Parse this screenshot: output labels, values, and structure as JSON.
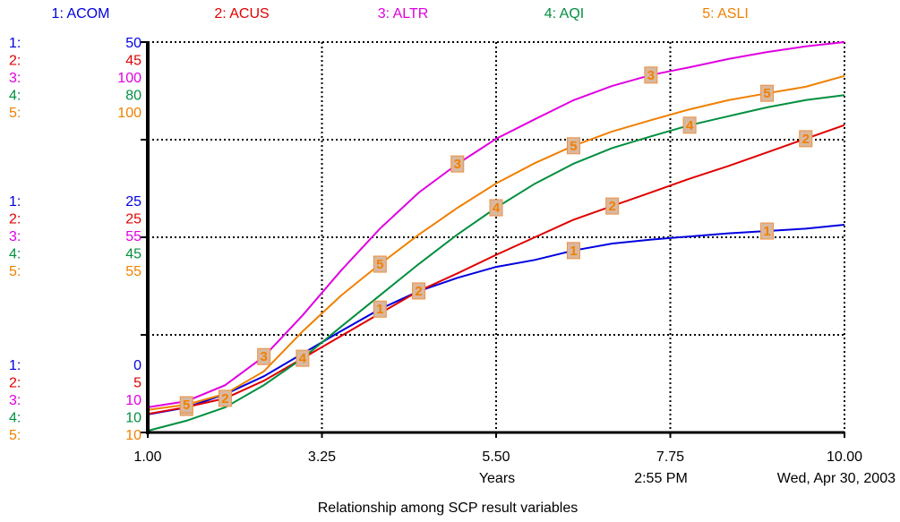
{
  "chart_data": {
    "type": "line",
    "title": "Relationship among SCP result variables",
    "x_label": "Years",
    "time": "2:55 PM",
    "date": "Wed, Apr 30, 2003",
    "xlim": [
      1,
      10
    ],
    "xticks": [
      {
        "value": 1,
        "label": "1.00"
      },
      {
        "value": 3.25,
        "label": "3.25"
      },
      {
        "value": 5.5,
        "label": "5.50"
      },
      {
        "value": 7.75,
        "label": "7.75"
      },
      {
        "value": 10,
        "label": "10.00"
      }
    ],
    "x": [
      1,
      1.5,
      2,
      2.5,
      3,
      3.5,
      4,
      4.5,
      5,
      5.5,
      6,
      6.5,
      7,
      7.5,
      8,
      8.5,
      9,
      9.5,
      10
    ],
    "series": [
      {
        "name": "1: ACOM",
        "key": "1:",
        "marker_label": "1",
        "color": "#0000e0",
        "ylim": [
          0,
          50
        ],
        "yticks": [
          0,
          25,
          50
        ],
        "values": [
          2.3,
          3.2,
          4.9,
          7.2,
          10.1,
          13,
          15.8,
          18.1,
          19.8,
          21.2,
          22.1,
          23.3,
          24.2,
          24.7,
          25.1,
          25.5,
          25.8,
          26.1,
          26.6
        ]
      },
      {
        "name": "2: ACUS",
        "key": "2:",
        "marker_label": "2",
        "color": "#e00000",
        "ylim": [
          5,
          45
        ],
        "yticks": [
          5,
          25,
          45
        ],
        "values": [
          6.9,
          7.6,
          8.5,
          10.3,
          12.6,
          14.9,
          17.2,
          19.5,
          21.3,
          23.2,
          25,
          26.8,
          28.2,
          29.6,
          31,
          32.3,
          33.7,
          35.1,
          36.5
        ]
      },
      {
        "name": "3: ALTR",
        "key": "3:",
        "marker_label": "3",
        "color": "#e000e0",
        "ylim": [
          10,
          100
        ],
        "yticks": [
          10,
          55,
          100
        ],
        "values": [
          15.8,
          17.2,
          20.9,
          27.5,
          37,
          47.4,
          57,
          65.3,
          71.9,
          77.7,
          82.2,
          86.6,
          89.9,
          92.4,
          94.2,
          96.1,
          97.7,
          99,
          100
        ]
      },
      {
        "name": "4: AQI",
        "key": "4:",
        "marker_label": "4",
        "color": "#008f3f",
        "ylim": [
          10,
          80
        ],
        "yticks": [
          10,
          45,
          80
        ],
        "values": [
          10.3,
          12.1,
          14.5,
          18.5,
          23.3,
          29,
          34.6,
          40.2,
          45.5,
          50.3,
          54.6,
          58.2,
          61,
          63.1,
          65.1,
          66.7,
          68.3,
          69.6,
          70.5
        ]
      },
      {
        "name": "5: ASLI",
        "key": "5:",
        "marker_label": "5",
        "color": "#f08000",
        "ylim": [
          10,
          100
        ],
        "yticks": [
          10,
          55,
          100
        ],
        "values": [
          15.2,
          16.4,
          18.9,
          24.1,
          33.3,
          41.6,
          48.8,
          55.6,
          61.8,
          67.4,
          72.1,
          76.1,
          79.4,
          82,
          84.5,
          86.6,
          88.2,
          89.7,
          92.2
        ]
      }
    ]
  }
}
